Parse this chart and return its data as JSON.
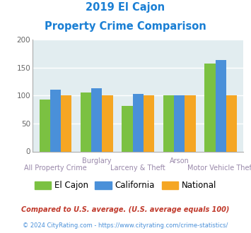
{
  "title_line1": "2019 El Cajon",
  "title_line2": "Property Crime Comparison",
  "title_color": "#1a7fd4",
  "el_cajon": [
    93,
    106,
    81,
    100,
    157
  ],
  "california": [
    110,
    113,
    103,
    100,
    163
  ],
  "national": [
    100,
    100,
    100,
    100,
    100
  ],
  "el_cajon_color": "#7bc142",
  "california_color": "#4a90d9",
  "national_color": "#f5a623",
  "bg_color": "#e2edf0",
  "ylim": [
    0,
    200
  ],
  "yticks": [
    0,
    50,
    100,
    150,
    200
  ],
  "legend_labels": [
    "El Cajon",
    "California",
    "National"
  ],
  "top_labels": [
    "",
    "Burglary",
    "",
    "Arson",
    ""
  ],
  "bot_labels": [
    "All Property Crime",
    "",
    "Larceny & Theft",
    "",
    "Motor Vehicle Theft"
  ],
  "footnote1": "Compared to U.S. average. (U.S. average equals 100)",
  "footnote2": "© 2024 CityRating.com - https://www.cityrating.com/crime-statistics/",
  "footnote1_color": "#c0392b",
  "footnote2_color": "#4a90d9"
}
